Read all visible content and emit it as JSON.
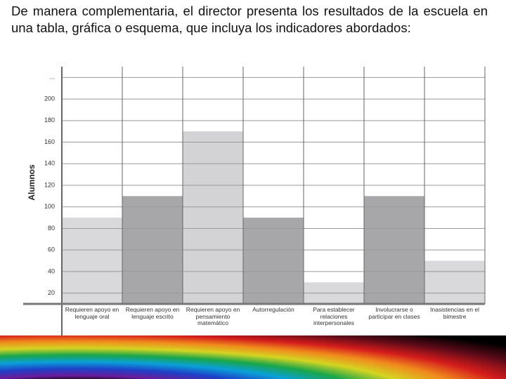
{
  "header": {
    "text": "De manera complementaria, el director presenta los resultados de la escuela en una tabla, gráfica o esquema, que incluya los indicadores abordados:"
  },
  "chart_data": {
    "type": "bar",
    "y_label": "Alumnos",
    "categories": [
      "Requieren apoyo en lenguaje oral",
      "Requieren apoyo en lenguaje escrito",
      "Requieren apoyo en pensamiento matemático",
      "Autorregulación",
      "Para establecer relaciones interpersonales",
      "Involucrarse o participar en clases",
      "Inasistencias en el bimestre"
    ],
    "values": [
      90,
      110,
      170,
      90,
      30,
      110,
      50
    ],
    "colors": [
      "#d9d9db",
      "#a7a7a9",
      "#d3d3d5",
      "#a7a7a9",
      "#d9d9db",
      "#a7a7a9",
      "#d9d9db"
    ],
    "ylim": [
      10,
      230
    ],
    "yticks": [
      20,
      40,
      60,
      80,
      100,
      120,
      140,
      160,
      180,
      200,
      {
        "value": 220,
        "label": "..."
      }
    ],
    "grid": true
  }
}
